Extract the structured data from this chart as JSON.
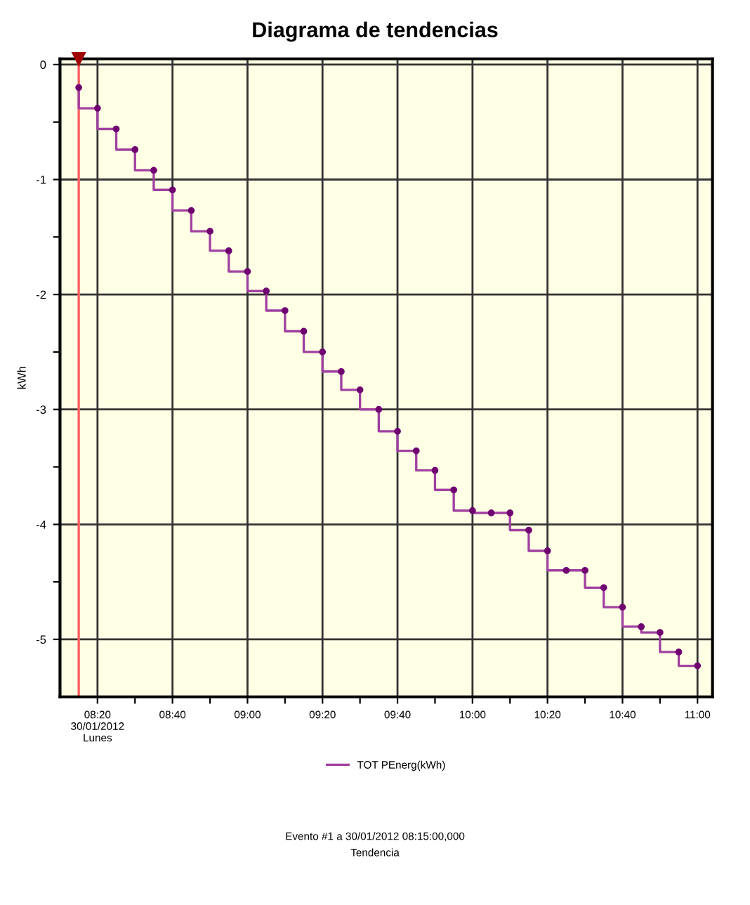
{
  "chart_data": {
    "type": "step",
    "title": "Diagrama de tendencias",
    "ylabel": "kWh",
    "x": [
      "2012-01-30T08:15",
      "2012-01-30T08:20",
      "2012-01-30T08:25",
      "2012-01-30T08:30",
      "2012-01-30T08:35",
      "2012-01-30T08:40",
      "2012-01-30T08:45",
      "2012-01-30T08:50",
      "2012-01-30T08:55",
      "2012-01-30T09:00",
      "2012-01-30T09:05",
      "2012-01-30T09:10",
      "2012-01-30T09:15",
      "2012-01-30T09:20",
      "2012-01-30T09:25",
      "2012-01-30T09:30",
      "2012-01-30T09:35",
      "2012-01-30T09:40",
      "2012-01-30T09:45",
      "2012-01-30T09:50",
      "2012-01-30T09:55",
      "2012-01-30T10:00",
      "2012-01-30T10:05",
      "2012-01-30T10:10",
      "2012-01-30T10:15",
      "2012-01-30T10:20",
      "2012-01-30T10:25",
      "2012-01-30T10:30",
      "2012-01-30T10:35",
      "2012-01-30T10:40",
      "2012-01-30T10:45",
      "2012-01-30T10:50",
      "2012-01-30T10:55",
      "2012-01-30T11:00"
    ],
    "series": [
      {
        "name": "TOT PEnerg(kWh)",
        "color": "#a040a0",
        "values": [
          -0.2,
          -0.38,
          -0.56,
          -0.74,
          -0.92,
          -1.09,
          -1.27,
          -1.45,
          -1.62,
          -1.8,
          -1.97,
          -2.14,
          -2.32,
          -2.5,
          -2.67,
          -2.83,
          -3.0,
          -3.19,
          -3.36,
          -3.53,
          -3.7,
          -3.88,
          -3.9,
          -3.9,
          -4.05,
          -4.23,
          -4.4,
          -4.4,
          -4.55,
          -4.72,
          -4.89,
          -4.94,
          -5.11,
          -5.23
        ]
      }
    ],
    "xlim": [
      "2012-01-30T08:10",
      "2012-01-30T11:04"
    ],
    "ylim": [
      -5.5,
      0.05
    ],
    "xticks": [
      {
        "value": "2012-01-30T08:20",
        "label": "08:20\n30/01/2012\nLunes"
      },
      {
        "value": "2012-01-30T08:30",
        "label": null
      },
      {
        "value": "2012-01-30T08:40",
        "label": "08:40"
      },
      {
        "value": "2012-01-30T08:50",
        "label": null
      },
      {
        "value": "2012-01-30T09:00",
        "label": "09:00"
      },
      {
        "value": "2012-01-30T09:10",
        "label": null
      },
      {
        "value": "2012-01-30T09:20",
        "label": "09:20"
      },
      {
        "value": "2012-01-30T09:30",
        "label": null
      },
      {
        "value": "2012-01-30T09:40",
        "label": "09:40"
      },
      {
        "value": "2012-01-30T09:50",
        "label": null
      },
      {
        "value": "2012-01-30T10:00",
        "label": "10:00"
      },
      {
        "value": "2012-01-30T10:10",
        "label": null
      },
      {
        "value": "2012-01-30T10:20",
        "label": "10:20"
      },
      {
        "value": "2012-01-30T10:30",
        "label": null
      },
      {
        "value": "2012-01-30T10:40",
        "label": "10:40"
      },
      {
        "value": "2012-01-30T10:50",
        "label": null
      },
      {
        "value": "2012-01-30T11:00",
        "label": "11:00"
      }
    ],
    "yticks": [
      0,
      {
        "value": -0.5,
        "label": null
      },
      -1,
      {
        "value": -1.5,
        "label": null
      },
      -2,
      {
        "value": -2.5,
        "label": null
      },
      -3,
      {
        "value": -3.5,
        "label": null
      },
      -4,
      {
        "value": -4.5,
        "label": null
      },
      -5
    ],
    "ref_lines": [
      {
        "axis": "x",
        "value": "2012-01-30T08:15",
        "label": null,
        "color": "#ff6060"
      }
    ],
    "grid": true,
    "legend": "bottom",
    "marker": "circle",
    "line_style": "solid",
    "annotations": [
      "Evento #1 a 30/01/2012 08:15:00,000",
      "Tendencia"
    ]
  }
}
